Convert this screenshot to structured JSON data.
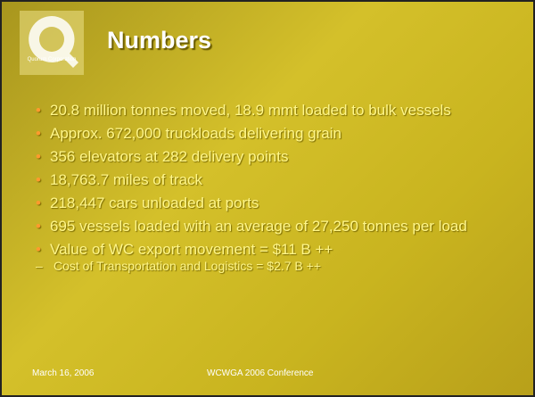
{
  "header": {
    "title": "Numbers",
    "logo_text": "Quorum Corporation"
  },
  "bullets": [
    "20.8 million tonnes moved, 18.9 mmt loaded to bulk vessels",
    "Approx. 672,000 truckloads delivering grain",
    "356 elevators at 282 delivery points",
    "18,763.7 miles of track",
    "218,447 cars unloaded at ports",
    "695 vessels loaded with an average of 27,250 tonnes per load",
    "Value of WC export movement = $11 B ++"
  ],
  "sub_bullets": [
    "Cost of Transportation and Logistics = $2.7 B ++"
  ],
  "footer": {
    "date": "March 16, 2006",
    "event": "WCWGA 2006 Conference"
  }
}
